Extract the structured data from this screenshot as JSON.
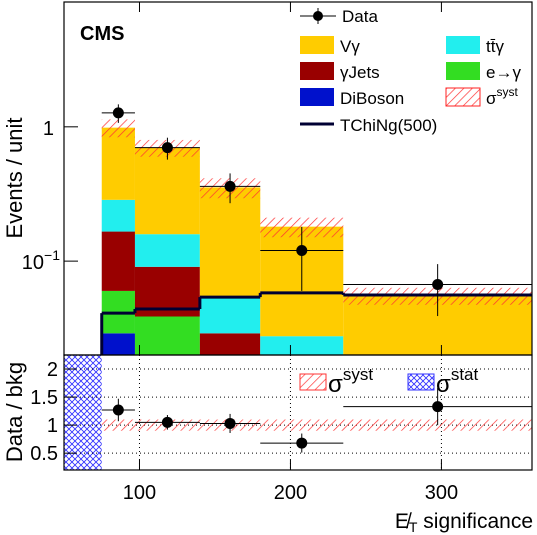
{
  "chart_data": {
    "type": "stacked-histogram",
    "experiment": "CMS",
    "y_label": "Events / unit",
    "x_label": {
      "symbol": "E̸",
      "subscript": "T",
      "text": " significance"
    },
    "log_y": true,
    "xlim": [
      50,
      360
    ],
    "xticks": [
      100,
      200,
      300
    ],
    "ylim": [
      0.02,
      8.5
    ],
    "yticks": [
      {
        "value": 0.1,
        "label": "10",
        "exponent": "−1"
      },
      1
    ],
    "bins": [
      75,
      97,
      140,
      180,
      235,
      360
    ],
    "series": [
      {
        "name": "DiBoson",
        "color": "#0011cc",
        "values": [
          0.029,
          0,
          0,
          0,
          0
        ]
      },
      {
        "name": "e→γ",
        "color": "#33dd22",
        "values": [
          0.031,
          0.0387,
          0,
          0,
          0
        ]
      },
      {
        "name": "γJets",
        "color": "#990000",
        "values": [
          0.106,
          0.052,
          0.029,
          0,
          0
        ]
      },
      {
        "name": "tt̄γ",
        "color": "#22eeee",
        "values": [
          0.12,
          0.068,
          0.025,
          0.0276,
          0
        ]
      },
      {
        "name": "Vγ",
        "color": "#ffcc00",
        "values": [
          0.7,
          0.54,
          0.3,
          0.153,
          0.0553
        ]
      }
    ],
    "syst": {
      "name": "σ",
      "name_sup": "syst",
      "color": "#ff2222",
      "values": [
        0.15,
        0.1,
        0.06,
        0.03,
        0.008
      ]
    },
    "signal": {
      "name": "TChiNg(500)",
      "color": "#000033",
      "values": [
        0.041,
        0.044,
        0.054,
        0.058,
        0.056
      ]
    },
    "data": {
      "name": "Data",
      "color": "#000000",
      "values": [
        1.27,
        0.7,
        0.36,
        0.12,
        0.067
      ],
      "errors": [
        0.2,
        0.13,
        0.09,
        0.06,
        0.028
      ]
    },
    "ratio": {
      "y_label": "Data / bkg",
      "ylim": [
        0.2,
        2.25
      ],
      "yticks": [
        0.5,
        1,
        1.5,
        2
      ],
      "grid": true,
      "values": [
        1.27,
        1.05,
        1.03,
        0.68,
        1.33
      ],
      "errors": [
        0.2,
        0.13,
        0.17,
        0.17,
        0.33
      ],
      "syst_band": [
        0.9,
        1.1
      ],
      "syst_label": {
        "symbol": "σ",
        "sup": "syst"
      },
      "stat_label": {
        "symbol": "σ",
        "sup": "stat"
      }
    }
  }
}
